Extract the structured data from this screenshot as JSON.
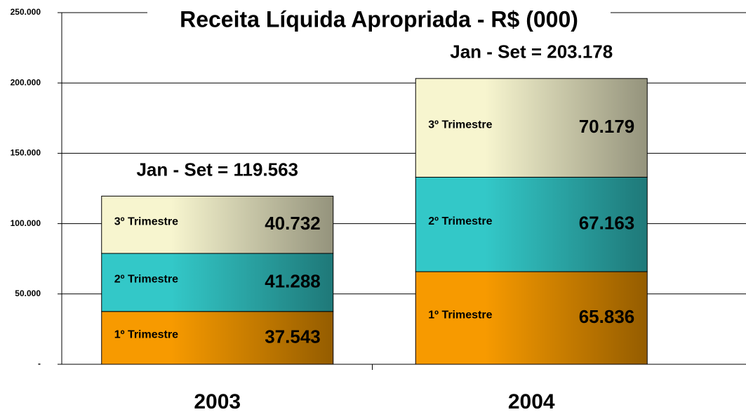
{
  "chart_data": {
    "type": "stacked_bar",
    "title": "Receita Líquida Apropriada - R$ (000)",
    "categories": [
      "2003",
      "2004"
    ],
    "series": [
      {
        "name": "1º Trimestre",
        "color": "#f79a00",
        "values": [
          37543,
          65836
        ],
        "value_labels": [
          "37.543",
          "65.836"
        ]
      },
      {
        "name": "2º Trimestre",
        "color": "#33c8c8",
        "values": [
          41288,
          67163
        ],
        "value_labels": [
          "41.288",
          "67.163"
        ]
      },
      {
        "name": "3º Trimestre",
        "color": "#f7f5cf",
        "values": [
          40732,
          70179
        ],
        "value_labels": [
          "40.732",
          "70.179"
        ]
      }
    ],
    "annotations": [
      "Jan - Set =  119.563",
      "Jan - Set =  203.178"
    ],
    "ylim": [
      0,
      250000
    ],
    "yticks": [
      {
        "value": 0,
        "label": "-"
      },
      {
        "value": 50000,
        "label": "50.000"
      },
      {
        "value": 100000,
        "label": "100.000"
      },
      {
        "value": 150000,
        "label": "150.000"
      },
      {
        "value": 200000,
        "label": "200.000"
      },
      {
        "value": 250000,
        "label": "250.000"
      }
    ],
    "grid": true
  }
}
